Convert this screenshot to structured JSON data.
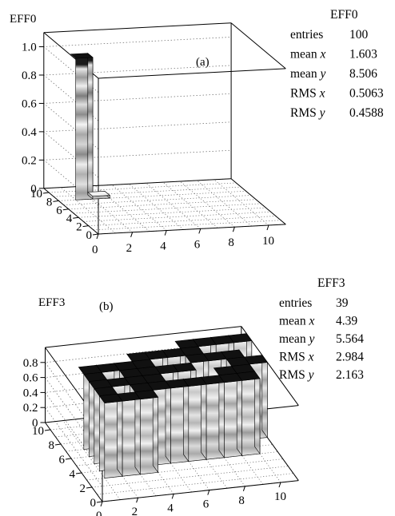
{
  "chart_data": [
    {
      "type": "lego3d",
      "label": "(a)",
      "title": "EFF0",
      "stats": {
        "title": "EFF0",
        "rows": [
          {
            "name": "entries",
            "value": "100"
          },
          {
            "name": "mean x",
            "value": "1.603"
          },
          {
            "name": "mean y",
            "value": "8.506"
          },
          {
            "name": "RMS x",
            "value": "0.5063"
          },
          {
            "name": "RMS y",
            "value": "0.4588"
          }
        ]
      },
      "x_ticks": [
        "0",
        "2",
        "4",
        "6",
        "8",
        "10"
      ],
      "y_ticks": [
        "0",
        "2",
        "4",
        "6",
        "8",
        "10"
      ],
      "z_ticks": [
        "0",
        "0.2",
        "0.4",
        "0.6",
        "0.8",
        "1.0"
      ],
      "xlim": [
        0,
        11
      ],
      "ylim": [
        0,
        11
      ],
      "zlim": [
        0,
        1.1
      ],
      "cells": [
        {
          "x": 1,
          "y": 8,
          "z": 1.0
        },
        {
          "x": 2,
          "y": 8,
          "z": 0.02
        }
      ]
    },
    {
      "type": "lego3d",
      "label": "(b)",
      "title": "EFF3",
      "stats": {
        "title": "EFF3",
        "rows": [
          {
            "name": "entries",
            "value": "39"
          },
          {
            "name": "mean x",
            "value": "4.39"
          },
          {
            "name": "mean y",
            "value": "5.564"
          },
          {
            "name": "RMS x",
            "value": "2.984"
          },
          {
            "name": "RMS y",
            "value": "2.163"
          }
        ]
      },
      "x_ticks": [
        "0",
        "2",
        "4",
        "6",
        "8",
        "10"
      ],
      "y_ticks": [
        "0",
        "2",
        "4",
        "6",
        "8",
        "10"
      ],
      "z_ticks": [
        "0",
        "0.2",
        "0.4",
        "0.6",
        "0.8"
      ],
      "xlim": [
        0,
        11
      ],
      "ylim": [
        0,
        11
      ],
      "zlim": [
        0,
        1.0
      ],
      "cells": [
        {
          "x": 1,
          "y": 3,
          "z": 1
        },
        {
          "x": 1,
          "y": 4,
          "z": 1
        },
        {
          "x": 1,
          "y": 5,
          "z": 1
        },
        {
          "x": 1,
          "y": 6,
          "z": 1
        },
        {
          "x": 1,
          "y": 7,
          "z": 1
        },
        {
          "x": 2,
          "y": 3,
          "z": 1
        },
        {
          "x": 2,
          "y": 5,
          "z": 1
        },
        {
          "x": 2,
          "y": 7,
          "z": 1
        },
        {
          "x": 3,
          "y": 3,
          "z": 1
        },
        {
          "x": 3,
          "y": 4,
          "z": 1
        },
        {
          "x": 3,
          "y": 5,
          "z": 1
        },
        {
          "x": 3,
          "y": 6,
          "z": 1
        },
        {
          "x": 3,
          "y": 7,
          "z": 1
        },
        {
          "x": 4,
          "y": 4,
          "z": 1
        },
        {
          "x": 4,
          "y": 5,
          "z": 1
        },
        {
          "x": 4,
          "y": 6,
          "z": 1
        },
        {
          "x": 4,
          "y": 7,
          "z": 1
        },
        {
          "x": 4,
          "y": 8,
          "z": 1
        },
        {
          "x": 5,
          "y": 4,
          "z": 1
        },
        {
          "x": 5,
          "y": 6,
          "z": 1
        },
        {
          "x": 5,
          "y": 8,
          "z": 1
        },
        {
          "x": 6,
          "y": 4,
          "z": 1
        },
        {
          "x": 6,
          "y": 6,
          "z": 1
        },
        {
          "x": 6,
          "y": 8,
          "z": 1
        },
        {
          "x": 7,
          "y": 4,
          "z": 1
        },
        {
          "x": 7,
          "y": 7,
          "z": 1
        },
        {
          "x": 7,
          "y": 8,
          "z": 1
        },
        {
          "x": 7,
          "y": 9,
          "z": 1
        },
        {
          "x": 8,
          "y": 4,
          "z": 1
        },
        {
          "x": 8,
          "y": 5,
          "z": 1
        },
        {
          "x": 8,
          "y": 7,
          "z": 1
        },
        {
          "x": 8,
          "y": 9,
          "z": 1
        },
        {
          "x": 9,
          "y": 4,
          "z": 1
        },
        {
          "x": 9,
          "y": 5,
          "z": 1
        },
        {
          "x": 9,
          "y": 6,
          "z": 1
        },
        {
          "x": 9,
          "y": 7,
          "z": 1
        },
        {
          "x": 9,
          "y": 9,
          "z": 1
        },
        {
          "x": 10,
          "y": 6,
          "z": 1
        },
        {
          "x": 10,
          "y": 9,
          "z": 1
        }
      ]
    }
  ]
}
